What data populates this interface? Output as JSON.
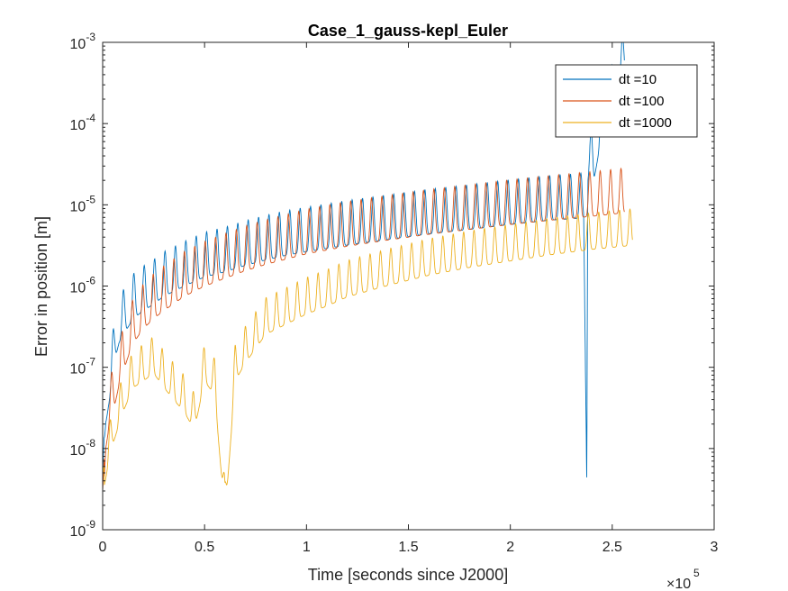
{
  "chart_data": {
    "type": "line",
    "title": "Case_1_gauss-kepl_Euler",
    "xlabel": "Time [seconds since J2000]",
    "ylabel": "Error in position [m]",
    "x_multiplier_label": "×10",
    "x_multiplier_exponent": "5",
    "xlim": [
      0,
      300000
    ],
    "ylim": [
      1e-09,
      0.001
    ],
    "yscale": "log",
    "grid": false,
    "legend_position": "top-right",
    "x_ticks": [
      {
        "value": 0,
        "label": "0"
      },
      {
        "value": 50000,
        "label": "0.5"
      },
      {
        "value": 100000,
        "label": "1"
      },
      {
        "value": 150000,
        "label": "1.5"
      },
      {
        "value": 200000,
        "label": "2"
      },
      {
        "value": 250000,
        "label": "2.5"
      },
      {
        "value": 300000,
        "label": "3"
      }
    ],
    "y_ticks": [
      {
        "value": 1e-09,
        "base": "10",
        "exp": "-9"
      },
      {
        "value": 1e-08,
        "base": "10",
        "exp": "-8"
      },
      {
        "value": 1e-07,
        "base": "10",
        "exp": "-7"
      },
      {
        "value": 1e-06,
        "base": "10",
        "exp": "-6"
      },
      {
        "value": 1e-05,
        "base": "10",
        "exp": "-5"
      },
      {
        "value": 0.0001,
        "base": "10",
        "exp": "-4"
      },
      {
        "value": 0.001,
        "base": "10",
        "exp": "-3"
      }
    ],
    "series": [
      {
        "name": "dt =10",
        "color": "#0072BD",
        "x": [
          0,
          1500,
          3000,
          4500,
          6000,
          8000,
          10000,
          12000,
          15000,
          20000,
          25000,
          30000,
          40000,
          50000,
          60000,
          70000,
          80000,
          90000,
          100000,
          120000,
          140000,
          160000,
          180000,
          200000,
          220000,
          230000,
          236000,
          237500,
          238000,
          239000,
          241000,
          245000,
          250000,
          254000,
          256000
        ],
        "y": [
          5e-09,
          4e-08,
          7e-08,
          1.2e-07,
          2.5e-07,
          4e-07,
          5e-07,
          6e-07,
          8e-07,
          1e-06,
          1.2e-06,
          1.5e-06,
          2e-06,
          2.6e-06,
          3e-06,
          3.6e-06,
          4.2e-06,
          4.8e-06,
          5.3e-06,
          6.4e-06,
          7.5e-06,
          8.8e-06,
          1e-05,
          1.15e-05,
          1.3e-05,
          1.35e-05,
          1.4e-05,
          8e-09,
          3.8e-05,
          5e-05,
          4e-05,
          0.00015,
          0.0003,
          0.0006,
          0.0008
        ],
        "osc_amplitude_decades": 0.55,
        "osc_period": 5100
      },
      {
        "name": "dt =100",
        "color": "#D95319",
        "x": [
          0,
          1500,
          3000,
          4500,
          6000,
          8000,
          10000,
          12000,
          15000,
          20000,
          25000,
          30000,
          40000,
          50000,
          60000,
          70000,
          80000,
          90000,
          100000,
          120000,
          140000,
          160000,
          180000,
          200000,
          220000,
          240000,
          256000
        ],
        "y": [
          3e-09,
          2e-08,
          3.5e-08,
          5e-08,
          7e-08,
          1.2e-07,
          1.7e-07,
          2.5e-07,
          4e-07,
          6e-07,
          8e-07,
          1e-06,
          1.5e-06,
          2e-06,
          2.5e-06,
          3.1e-06,
          3.7e-06,
          4.3e-06,
          5e-06,
          6.2e-06,
          7.4e-06,
          8.7e-06,
          1e-05,
          1.15e-05,
          1.3e-05,
          1.45e-05,
          1.6e-05
        ],
        "osc_amplitude_decades": 0.55,
        "osc_period": 5100
      },
      {
        "name": "dt =1000",
        "color": "#EDB120",
        "x": [
          0,
          5000,
          10000,
          15000,
          20000,
          25000,
          30000,
          35000,
          40000,
          45000,
          50000,
          55000,
          60000,
          65000,
          70000,
          75000,
          80000,
          90000,
          100000,
          110000,
          120000,
          140000,
          160000,
          180000,
          200000,
          220000,
          240000,
          260000
        ],
        "y": [
          5e-09,
          2e-08,
          5e-08,
          1e-07,
          1.2e-07,
          1.5e-07,
          1e-07,
          7e-08,
          5e-08,
          3e-08,
          1.2e-07,
          8e-08,
          2.5e-09,
          1.2e-07,
          2e-07,
          3e-07,
          4.5e-07,
          6e-07,
          8e-07,
          1e-06,
          1.3e-06,
          1.8e-06,
          2.4e-06,
          3e-06,
          3.6e-06,
          4.3e-06,
          5e-06,
          5.6e-06
        ],
        "osc_amplitude_decades": 0.45,
        "osc_period": 5100
      }
    ]
  }
}
